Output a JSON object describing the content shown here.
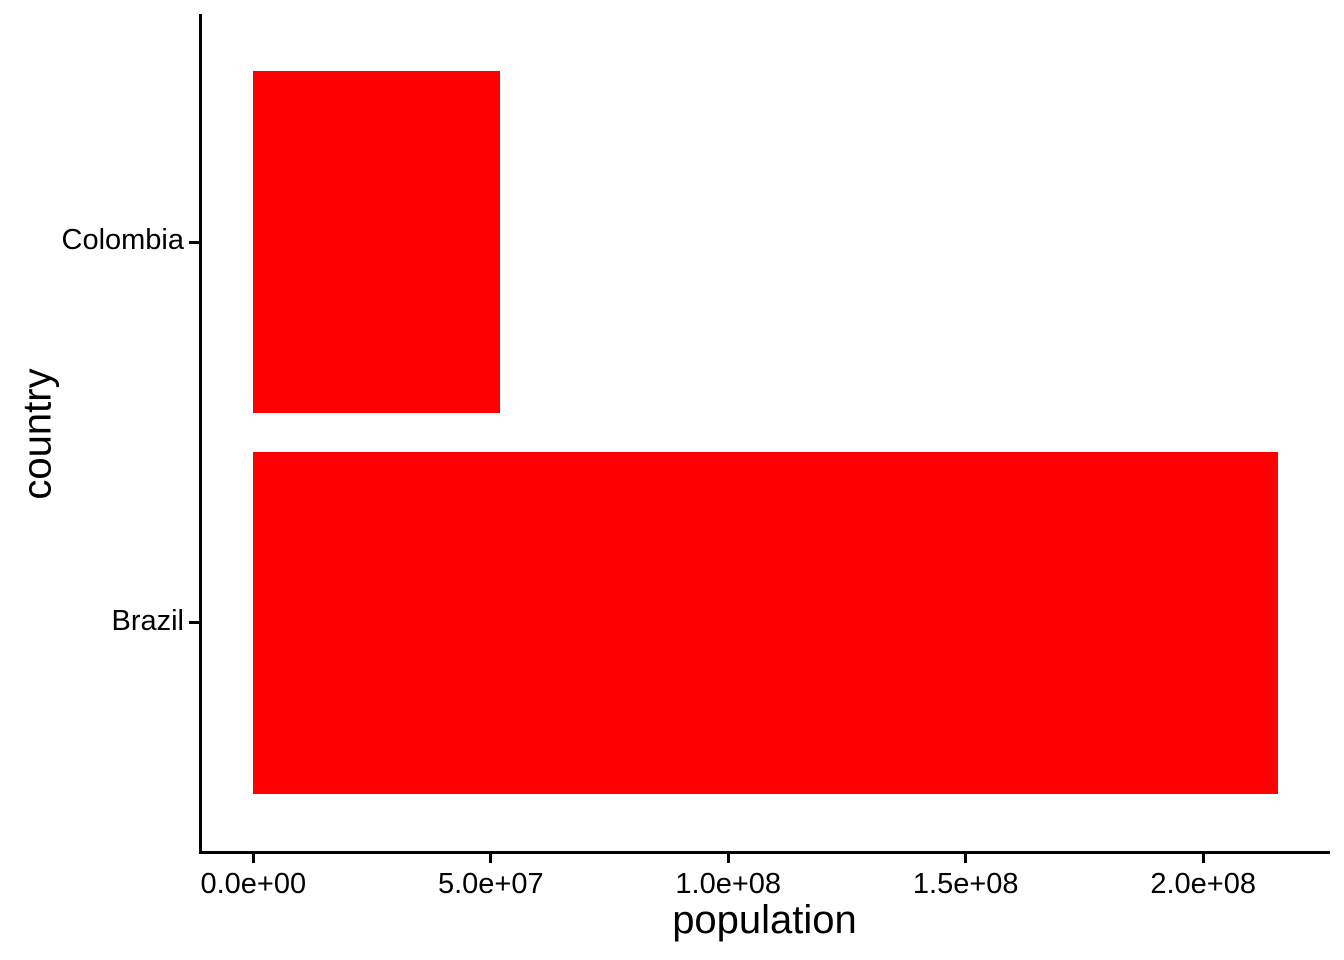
{
  "chart_data": {
    "type": "bar",
    "orientation": "horizontal",
    "title": "",
    "xlabel": "population",
    "ylabel": "country",
    "categories": [
      "Colombia",
      "Brazil"
    ],
    "values": [
      51900000,
      215700000
    ],
    "series": [
      {
        "name": "population",
        "values": [
          51900000,
          215700000
        ]
      }
    ],
    "x_ticks": [
      {
        "value": 0,
        "label": "0.0e+00"
      },
      {
        "value": 50000000,
        "label": "5.0e+07"
      },
      {
        "value": 100000000,
        "label": "1.0e+08"
      },
      {
        "value": 150000000,
        "label": "1.5e+08"
      },
      {
        "value": 200000000,
        "label": "2.0e+08"
      }
    ],
    "xlim": [
      -10800000,
      226700000
    ],
    "grid": false,
    "legend": false,
    "bar_color": "#FF0000",
    "axis_color": "#000000",
    "text_color": "#000000",
    "background_color": "#FFFFFF"
  }
}
